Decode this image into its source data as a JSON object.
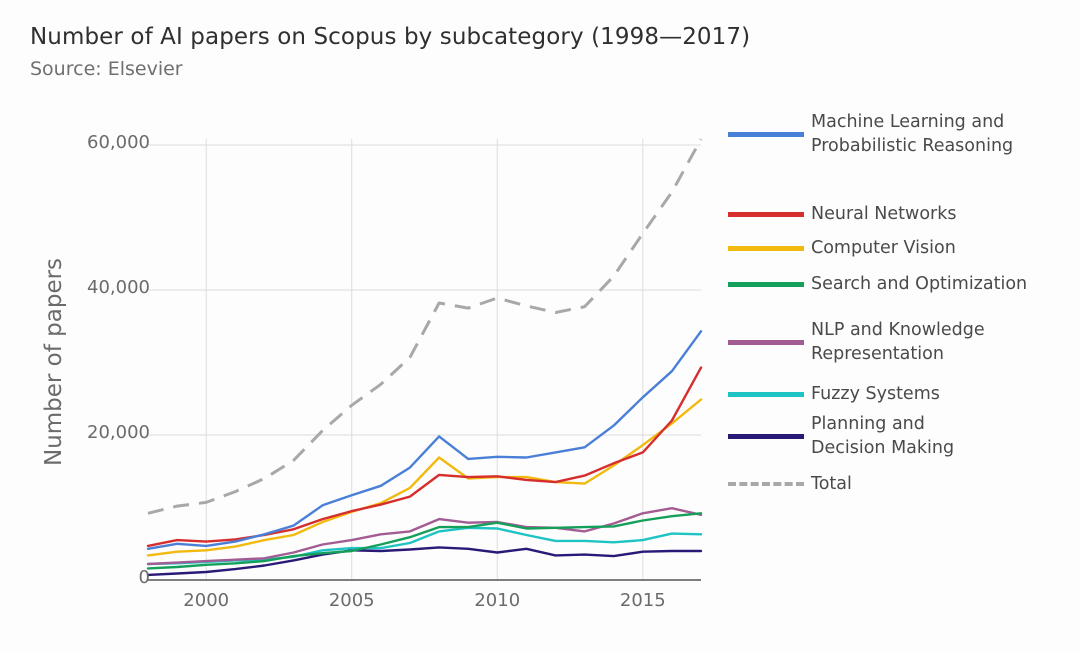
{
  "title": "Number of AI papers on Scopus by subcategory (1998—2017)",
  "subtitle": "Source: Elsevier",
  "chart_data": {
    "type": "line",
    "title": "Number of AI papers on Scopus by subcategory (1998—2017)",
    "subtitle": "Source: Elsevier",
    "xlabel": "",
    "ylabel": "Number of papers",
    "xlim": [
      1998,
      2017
    ],
    "ylim": [
      0,
      60000
    ],
    "x_ticks": [
      2000,
      2005,
      2010,
      2015
    ],
    "x_tick_labels": [
      "2000",
      "2005",
      "2010",
      "2015"
    ],
    "y_ticks": [
      0,
      20000,
      40000,
      60000
    ],
    "y_tick_labels": [
      "0",
      "20,000",
      "40,000",
      "60,000"
    ],
    "grid": true,
    "legend_position": "right",
    "x": [
      1998,
      1999,
      2000,
      2001,
      2002,
      2003,
      2004,
      2005,
      2006,
      2007,
      2008,
      2009,
      2010,
      2011,
      2012,
      2013,
      2014,
      2015,
      2016,
      2017
    ],
    "series": [
      {
        "name": "Machine Learning and Probabilistic Reasoning",
        "label_lines": [
          "Machine Learning and",
          "Probabilistic Reasoning"
        ],
        "color": "#4a7fd8",
        "dashed": false,
        "values": [
          4300,
          5000,
          4700,
          5300,
          6300,
          7500,
          10300,
          11700,
          13000,
          15500,
          19800,
          16700,
          17000,
          16900,
          17600,
          18300,
          21300,
          25200,
          28800,
          34300
        ]
      },
      {
        "name": "Neural Networks",
        "label_lines": [
          "Neural Networks"
        ],
        "color": "#d62d2d",
        "dashed": false,
        "values": [
          4700,
          5500,
          5300,
          5600,
          6200,
          7000,
          8400,
          9500,
          10400,
          11500,
          14500,
          14200,
          14300,
          13800,
          13500,
          14400,
          16100,
          17600,
          22000,
          29300
        ]
      },
      {
        "name": "Computer Vision",
        "label_lines": [
          "Computer Vision"
        ],
        "color": "#f2b90e",
        "dashed": false,
        "values": [
          3400,
          3900,
          4100,
          4600,
          5500,
          6200,
          8000,
          9400,
          10600,
          12700,
          16900,
          14000,
          14200,
          14200,
          13500,
          13300,
          15800,
          18600,
          21600,
          24900
        ]
      },
      {
        "name": "Search and Optimization",
        "label_lines": [
          "Search and Optimization"
        ],
        "color": "#14a05a",
        "dashed": false,
        "values": [
          1600,
          1800,
          2100,
          2300,
          2600,
          3300,
          3700,
          4000,
          4900,
          5900,
          7300,
          7300,
          7900,
          7100,
          7200,
          7300,
          7400,
          8200,
          8800,
          9200
        ]
      },
      {
        "name": "NLP and Knowledge Representation",
        "label_lines": [
          "NLP and Knowledge",
          "Representation"
        ],
        "color": "#a35c93",
        "dashed": false,
        "values": [
          2200,
          2400,
          2600,
          2800,
          3000,
          3800,
          4900,
          5500,
          6300,
          6700,
          8400,
          7900,
          8000,
          7300,
          7200,
          6700,
          7800,
          9200,
          9900,
          9000
        ]
      },
      {
        "name": "Fuzzy Systems",
        "label_lines": [
          "Fuzzy Systems"
        ],
        "color": "#1ec4c4",
        "dashed": false,
        "values": [
          2200,
          2300,
          2500,
          2700,
          2800,
          3200,
          4100,
          4400,
          4400,
          5100,
          6700,
          7200,
          7100,
          6200,
          5400,
          5400,
          5200,
          5500,
          6400,
          6300
        ]
      },
      {
        "name": "Planning and Decision Making",
        "label_lines": [
          "Planning and",
          "Decision Making"
        ],
        "color": "#2a1a78",
        "dashed": false,
        "values": [
          700,
          900,
          1100,
          1500,
          2000,
          2700,
          3500,
          4100,
          4000,
          4200,
          4500,
          4300,
          3800,
          4300,
          3400,
          3500,
          3300,
          3900,
          4000,
          4000
        ]
      },
      {
        "name": "Total",
        "label_lines": [
          "Total"
        ],
        "color": "#a8a8a8",
        "dashed": true,
        "values": [
          9200,
          10200,
          10700,
          12200,
          14000,
          16500,
          20600,
          24100,
          27000,
          30700,
          38200,
          37500,
          38900,
          37800,
          36900,
          37700,
          41900,
          47800,
          53500,
          60800
        ]
      }
    ]
  }
}
